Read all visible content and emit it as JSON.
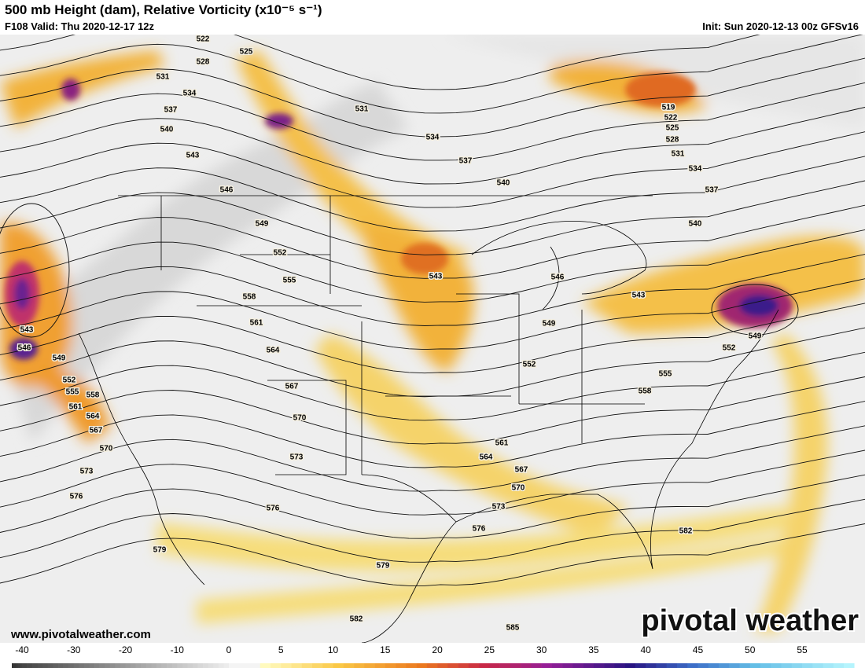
{
  "header": {
    "title": "500 mb Height (dam), Relative Vorticity (x10⁻⁵ s⁻¹)",
    "valid": "F108 Valid: Thu 2020-12-17 12z",
    "init": "Init: Sun 2020-12-13 00z GFSv16"
  },
  "contour_labels": [
    522,
    525,
    528,
    531,
    534,
    537,
    540,
    543,
    546,
    549,
    552,
    555,
    558,
    561,
    564,
    567,
    570,
    573,
    576,
    579,
    579,
    582,
    585,
    582,
    576,
    573,
    570,
    567,
    564,
    561,
    558,
    555,
    552,
    549,
    546,
    549,
    552,
    543,
    543,
    540,
    537,
    534,
    531,
    519,
    522,
    525,
    528,
    531,
    534,
    537,
    540,
    543,
    546,
    549,
    552,
    555,
    558,
    561,
    564,
    567,
    570,
    573,
    576
  ],
  "footer": {
    "website": "www.pivotalweather.com",
    "logo": "pivotal weather"
  },
  "colorbar": {
    "ticks": [
      -40,
      -30,
      -20,
      -10,
      0,
      5,
      10,
      15,
      20,
      25,
      30,
      35,
      40,
      45,
      50,
      55
    ]
  }
}
